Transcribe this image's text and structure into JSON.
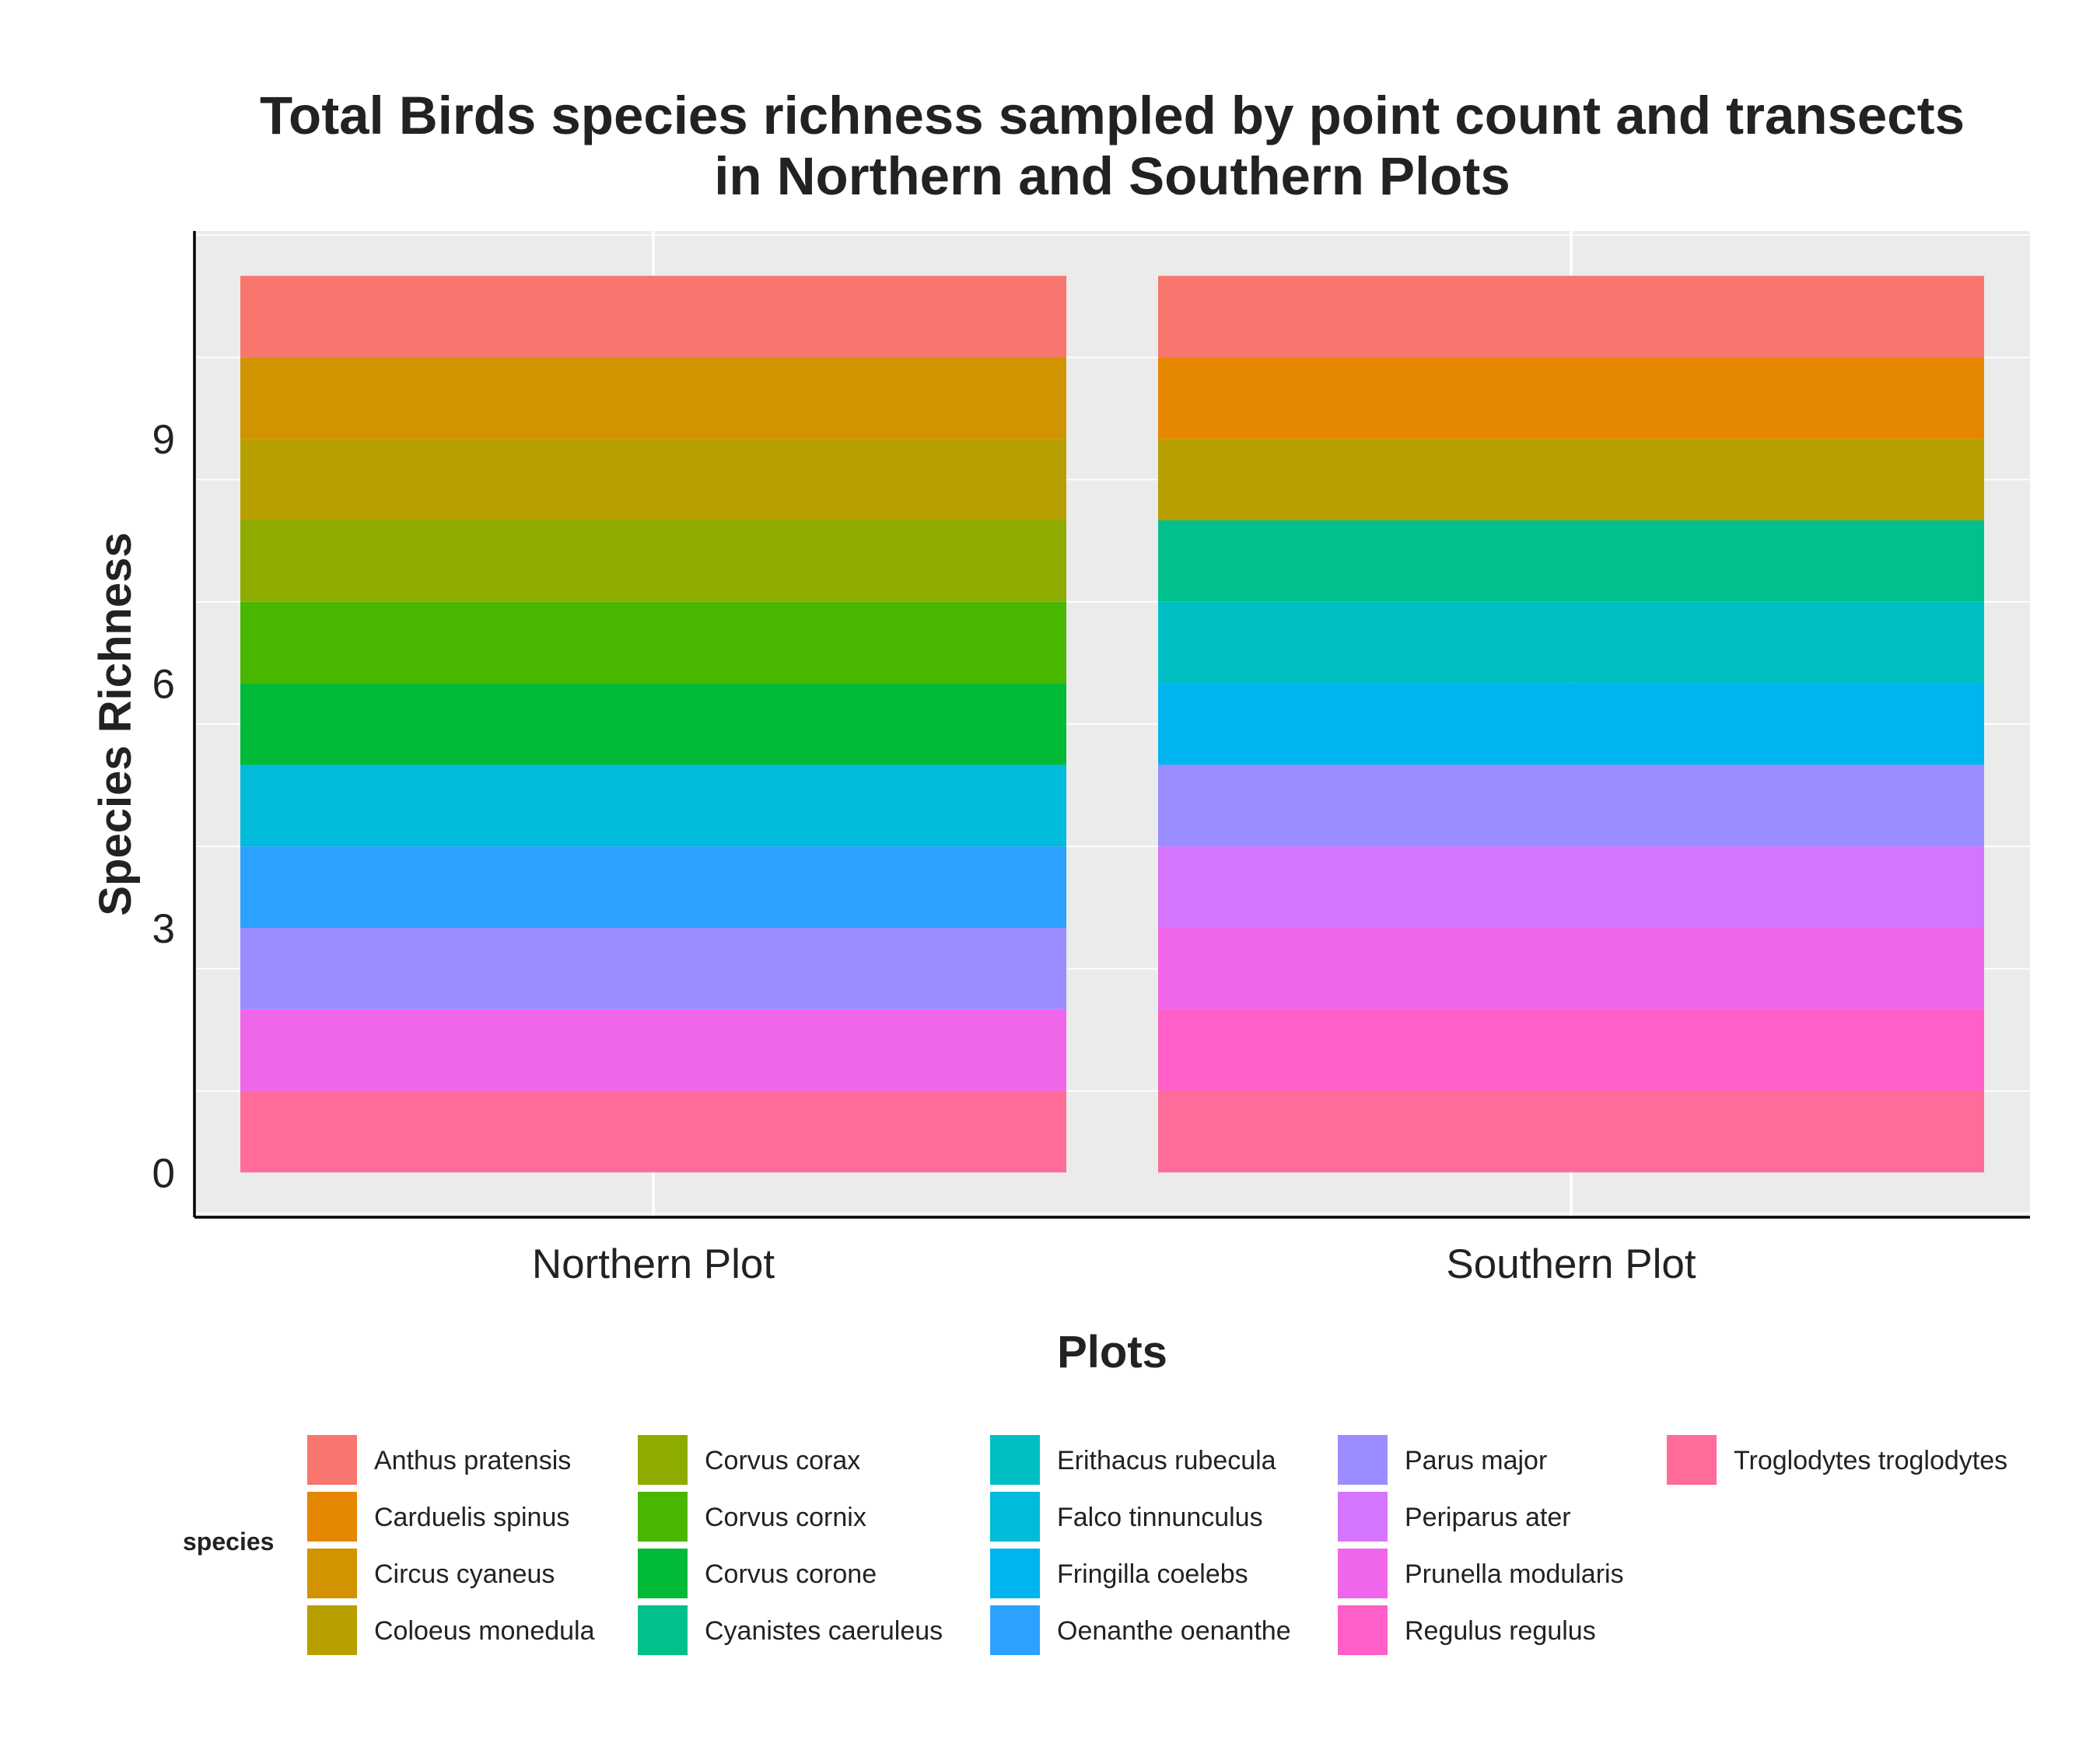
{
  "chart_data": {
    "type": "bar",
    "stacked": true,
    "title_lines": [
      "Total Birds species richness sampled by point count and transects",
      "in Northern and Southern Plots"
    ],
    "xlabel": "Plots",
    "ylabel": "Species Richness",
    "categories": [
      "Northern Plot",
      "Southern Plot"
    ],
    "ylim": [
      -0.55,
      11.55
    ],
    "yticks": [
      0,
      3,
      6,
      9
    ],
    "grid": true,
    "legend_title": "species",
    "legend_position": "bottom",
    "species": [
      {
        "name": "Anthus pratensis",
        "color": "#F8766D"
      },
      {
        "name": "Carduelis spinus",
        "color": "#E58700"
      },
      {
        "name": "Circus cyaneus",
        "color": "#D19300"
      },
      {
        "name": "Coloeus monedula",
        "color": "#B79F00"
      },
      {
        "name": "Corvus corax",
        "color": "#8EAB00"
      },
      {
        "name": "Corvus cornix",
        "color": "#49B700"
      },
      {
        "name": "Corvus corone",
        "color": "#00BA38"
      },
      {
        "name": "Cyanistes caeruleus",
        "color": "#00C08B"
      },
      {
        "name": "Erithacus rubecula",
        "color": "#00BFC4"
      },
      {
        "name": "Falco tinnunculus",
        "color": "#00BBDA"
      },
      {
        "name": "Fringilla coelebs",
        "color": "#00B4F0"
      },
      {
        "name": "Oenanthe oenanthe",
        "color": "#2DA1FF"
      },
      {
        "name": "Parus major",
        "color": "#9B8DFF"
      },
      {
        "name": "Periparus ater",
        "color": "#D474FF"
      },
      {
        "name": "Prunella modularis",
        "color": "#F066EA"
      },
      {
        "name": "Regulus regulus",
        "color": "#FF5FC7"
      },
      {
        "name": "Troglodytes troglodytes",
        "color": "#FF6C99"
      }
    ],
    "stacks": [
      {
        "category": "Northern Plot",
        "segments_bottom_to_top": [
          {
            "species": "Troglodytes troglodytes",
            "value": 1
          },
          {
            "species": "Prunella modularis",
            "value": 1
          },
          {
            "species": "Parus major",
            "value": 1
          },
          {
            "species": "Oenanthe oenanthe",
            "value": 1
          },
          {
            "species": "Falco tinnunculus",
            "value": 1
          },
          {
            "species": "Corvus corone",
            "value": 1
          },
          {
            "species": "Corvus cornix",
            "value": 1
          },
          {
            "species": "Corvus corax",
            "value": 1
          },
          {
            "species": "Coloeus monedula",
            "value": 1
          },
          {
            "species": "Circus cyaneus",
            "value": 1
          },
          {
            "species": "Anthus pratensis",
            "value": 1
          }
        ]
      },
      {
        "category": "Southern Plot",
        "segments_bottom_to_top": [
          {
            "species": "Troglodytes troglodytes",
            "value": 1
          },
          {
            "species": "Regulus regulus",
            "value": 1
          },
          {
            "species": "Prunella modularis",
            "value": 1
          },
          {
            "species": "Periparus ater",
            "value": 1
          },
          {
            "species": "Parus major",
            "value": 1
          },
          {
            "species": "Fringilla coelebs",
            "value": 1
          },
          {
            "species": "Erithacus rubecula",
            "value": 1
          },
          {
            "species": "Cyanistes caeruleus",
            "value": 1
          },
          {
            "species": "Coloeus monedula",
            "value": 1
          },
          {
            "species": "Carduelis spinus",
            "value": 1
          },
          {
            "species": "Anthus pratensis",
            "value": 1
          }
        ]
      }
    ]
  }
}
